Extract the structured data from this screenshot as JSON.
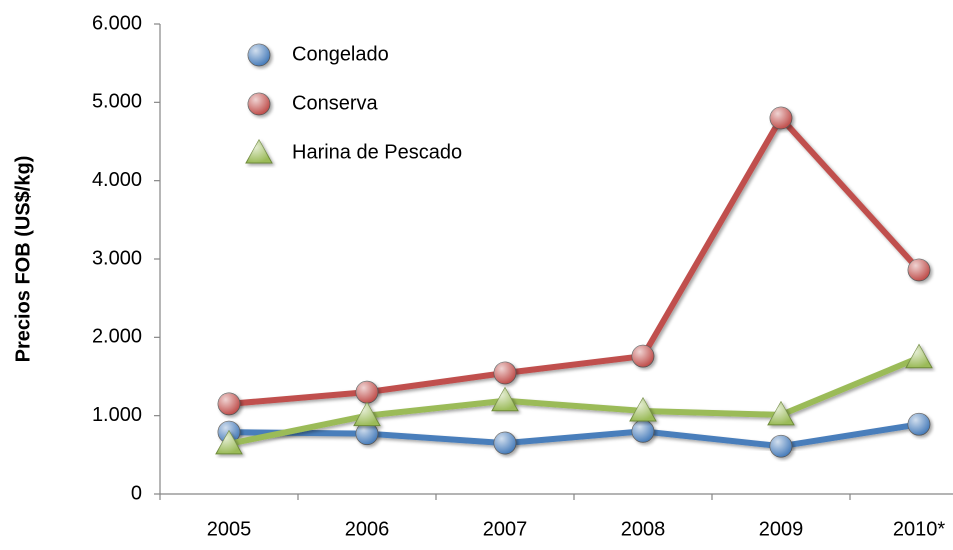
{
  "chart_data": {
    "type": "line",
    "y_label": "Precios FOB (US$/kg)",
    "categories": [
      "2005",
      "2006",
      "2007",
      "2008",
      "2009",
      "2010*"
    ],
    "series": [
      {
        "name": "Congelado",
        "color": "#4a7ebb",
        "marker": "circle",
        "values": [
          790,
          770,
          650,
          800,
          610,
          890
        ]
      },
      {
        "name": "Conserva",
        "color": "#c0504d",
        "marker": "circle",
        "values": [
          1150,
          1300,
          1545,
          1760,
          4800,
          2860
        ]
      },
      {
        "name": "Harina de Pescado",
        "color": "#9bbb59",
        "marker": "triangle",
        "values": [
          640,
          1000,
          1190,
          1060,
          1010,
          1740
        ]
      }
    ],
    "ylim": [
      0,
      6000
    ],
    "yticks": [
      0,
      {
        "value": 1000,
        "label": "1.000"
      },
      {
        "value": 2000,
        "label": "2.000"
      },
      {
        "value": 3000,
        "label": "3.000"
      },
      {
        "value": 4000,
        "label": "4.000"
      },
      {
        "value": 5000,
        "label": "5.000"
      },
      {
        "value": 6000,
        "label": "6.000"
      }
    ],
    "legend": "upper-left"
  }
}
